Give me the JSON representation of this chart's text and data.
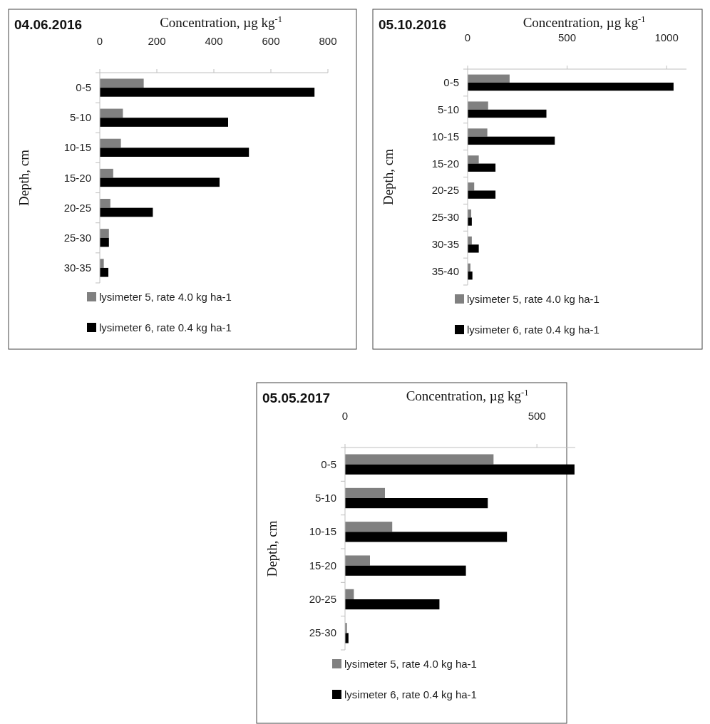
{
  "chart_data": [
    {
      "type": "bar",
      "orientation": "horizontal",
      "title": "04.06.2016",
      "xlabel": "Concentration, µg kg$^{-1}$",
      "ylabel": "Depth, cm",
      "categories": [
        "0-5",
        "5-10",
        "10-15",
        "15-20",
        "20-25",
        "25-30",
        "30-35"
      ],
      "xlim": [
        0,
        800
      ],
      "xticks": [
        0,
        200,
        400,
        600,
        800
      ],
      "legend": "bottom",
      "grid": false,
      "series": [
        {
          "name": "lysimeter 5, rate 4.0 kg ha-1",
          "color": "#808080",
          "values": [
            154,
            81,
            74,
            47,
            37,
            32,
            14
          ]
        },
        {
          "name": "lysimeter 6, rate 0.4 kg ha-1",
          "color": "#000000",
          "values": [
            753,
            450,
            523,
            420,
            186,
            32,
            30
          ]
        }
      ]
    },
    {
      "type": "bar",
      "orientation": "horizontal",
      "title": "05.10.2016",
      "xlabel": "Concentration, µg kg$^{-1}$",
      "ylabel": "Depth, cm",
      "categories": [
        "0-5",
        "5-10",
        "10-15",
        "15-20",
        "20-25",
        "25-30",
        "30-35",
        "35-40"
      ],
      "xlim": [
        0,
        1100
      ],
      "xticks": [
        0,
        500,
        1000
      ],
      "legend": "bottom",
      "grid": false,
      "series": [
        {
          "name": "lysimeter 5, rate 4.0 kg ha-1",
          "color": "#808080",
          "values": [
            211,
            103,
            99,
            56,
            33,
            18,
            21,
            14
          ]
        },
        {
          "name": "lysimeter 6, rate 0.4 kg ha-1",
          "color": "#000000",
          "values": [
            1035,
            396,
            438,
            140,
            140,
            21,
            56,
            24
          ]
        }
      ]
    },
    {
      "type": "bar",
      "orientation": "horizontal",
      "title": "05.05.2017",
      "xlabel": "Concentration, µg kg$^{-1}$",
      "ylabel": "Depth, cm",
      "categories": [
        "0-5",
        "5-10",
        "10-15",
        "15-20",
        "20-25",
        "25-30"
      ],
      "xlim": [
        0,
        600
      ],
      "xticks": [
        0,
        500
      ],
      "legend": "bottom",
      "grid": false,
      "series": [
        {
          "name": "lysimeter 5, rate 4.0  kg ha-1",
          "color": "#808080",
          "values": [
            387,
            104,
            123,
            65,
            23,
            5
          ]
        },
        {
          "name": "lysimeter 6, rate 0.4 kg ha-1",
          "color": "#000000",
          "values": [
            598,
            372,
            422,
            315,
            246,
            9
          ]
        }
      ]
    }
  ]
}
